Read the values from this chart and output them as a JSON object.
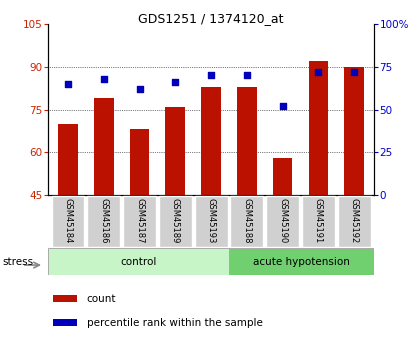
{
  "title": "GDS1251 / 1374120_at",
  "samples": [
    "GSM45184",
    "GSM45186",
    "GSM45187",
    "GSM45189",
    "GSM45193",
    "GSM45188",
    "GSM45190",
    "GSM45191",
    "GSM45192"
  ],
  "count_values": [
    70,
    79,
    68,
    76,
    83,
    83,
    58,
    92,
    90
  ],
  "percentile_values": [
    65,
    68,
    62,
    66,
    70,
    70,
    52,
    72,
    72
  ],
  "groups": [
    {
      "label": "control",
      "start": 0,
      "end": 5,
      "color": "#c8f5c8"
    },
    {
      "label": "acute hypotension",
      "start": 5,
      "end": 9,
      "color": "#70d070"
    }
  ],
  "ylim_left": [
    45,
    105
  ],
  "ylim_right": [
    0,
    100
  ],
  "yticks_left": [
    45,
    60,
    75,
    90,
    105
  ],
  "yticks_right": [
    0,
    25,
    50,
    75,
    100
  ],
  "bar_color": "#bb1100",
  "dot_color": "#0000bb",
  "tick_color_left": "#cc2200",
  "tick_color_right": "#0000cc",
  "grid_yticks": [
    60,
    75,
    90
  ],
  "bar_width": 0.55,
  "stress_label": "stress",
  "legend_count": "count",
  "legend_pct": "percentile rank within the sample",
  "sample_bg_color": "#d0d0d0",
  "group_border_color": "#aaaaaa"
}
